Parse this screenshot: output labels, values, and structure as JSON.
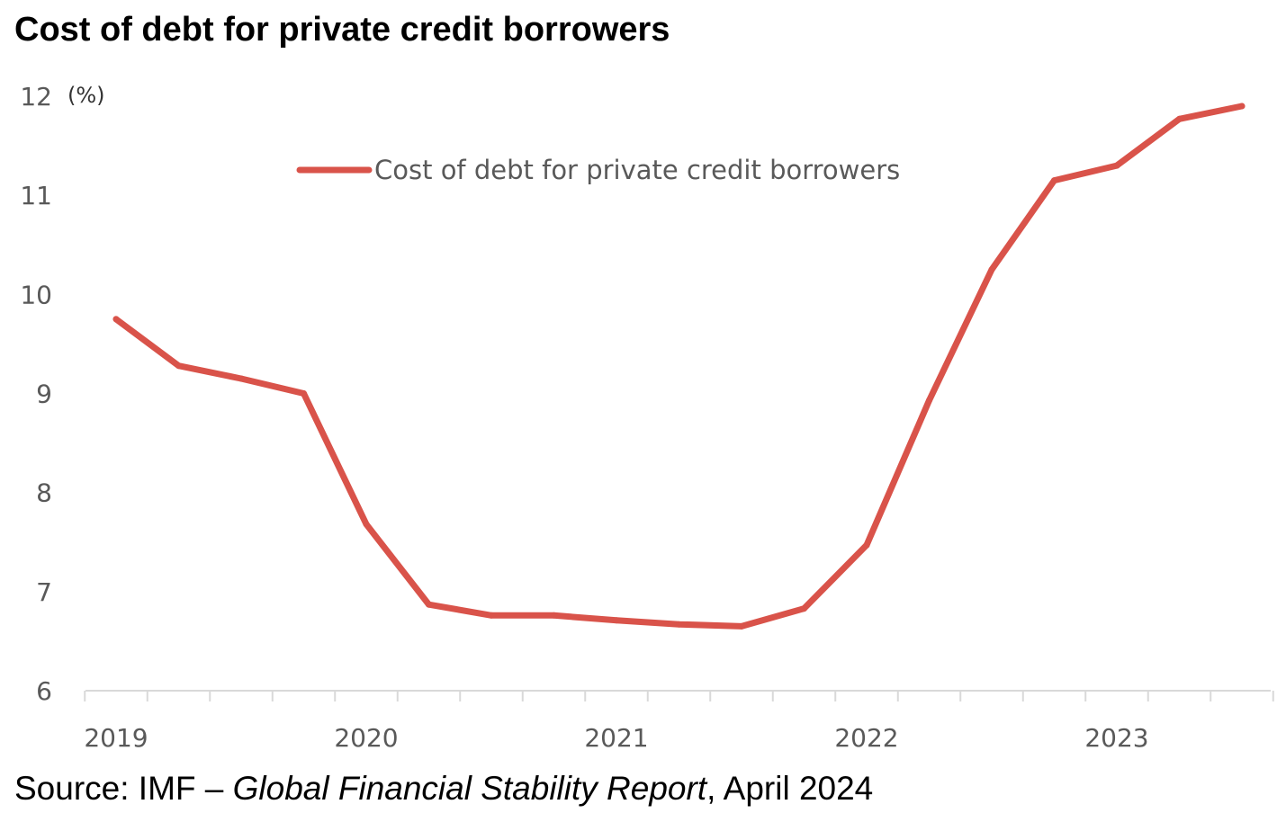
{
  "title": "Cost of debt for private credit borrowers",
  "source": {
    "prefix": "Source: IMF – ",
    "publication": "Global Financial Stability Report",
    "suffix": ", April 2024"
  },
  "chart_data": {
    "type": "line",
    "title": "Cost of debt for private credit borrowers",
    "ylabel": "(%)",
    "xlabel": "",
    "ylim": [
      6,
      12
    ],
    "yticks": [
      6,
      7,
      8,
      9,
      10,
      11,
      12
    ],
    "x_tick_labels": [
      "2019",
      "2020",
      "2021",
      "2022",
      "2023"
    ],
    "x": [
      "2019Q1",
      "2019Q2",
      "2019Q3",
      "2019Q4",
      "2020Q1",
      "2020Q2",
      "2020Q3",
      "2020Q4",
      "2021Q1",
      "2021Q2",
      "2021Q3",
      "2021Q4",
      "2022Q1",
      "2022Q2",
      "2022Q3",
      "2022Q4",
      "2023Q1",
      "2023Q2",
      "2023Q3"
    ],
    "grid": false,
    "legend_position": "top-center",
    "series": [
      {
        "name": "Cost of debt for private credit borrowers",
        "color": "#d9534a",
        "values": [
          9.75,
          9.28,
          9.15,
          9.0,
          7.68,
          6.87,
          6.76,
          6.76,
          6.71,
          6.67,
          6.65,
          6.83,
          7.47,
          8.93,
          10.25,
          11.15,
          11.3,
          11.77,
          11.9
        ]
      }
    ]
  }
}
